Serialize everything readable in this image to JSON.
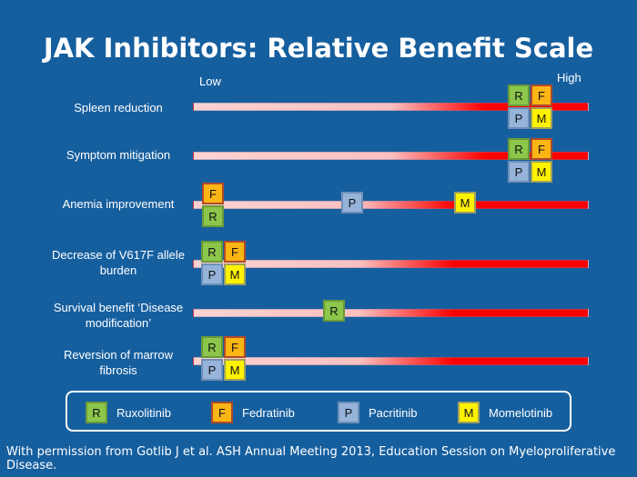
{
  "title": "JAK Inhibitors: Relative Benefit Scale",
  "scale": {
    "low": "Low",
    "high": "High"
  },
  "rows": [
    {
      "label": "Spleen reduction"
    },
    {
      "label": "Symptom mitigation"
    },
    {
      "label": "Anemia improvement"
    },
    {
      "label": "Decrease of V617F allele burden"
    },
    {
      "label": "Survival benefit ‘Disease modification’"
    },
    {
      "label": "Reversion of marrow fibrosis"
    }
  ],
  "badges": {
    "R": "R",
    "F": "F",
    "P": "P",
    "M": "M"
  },
  "legend": [
    {
      "code": "R",
      "name": "Ruxolitinib",
      "color": "#8cc64b"
    },
    {
      "code": "F",
      "name": "Fedratinib",
      "color": "#fbb515"
    },
    {
      "code": "P",
      "name": "Pacritinib",
      "color": "#96b4da"
    },
    {
      "code": "M",
      "name": "Momelotinib",
      "color": "#fff200"
    }
  ],
  "footer": "With permission from Gotlib J et al. ASH Annual Meeting 2013, Education Session on Myeloproliferative Disease."
}
